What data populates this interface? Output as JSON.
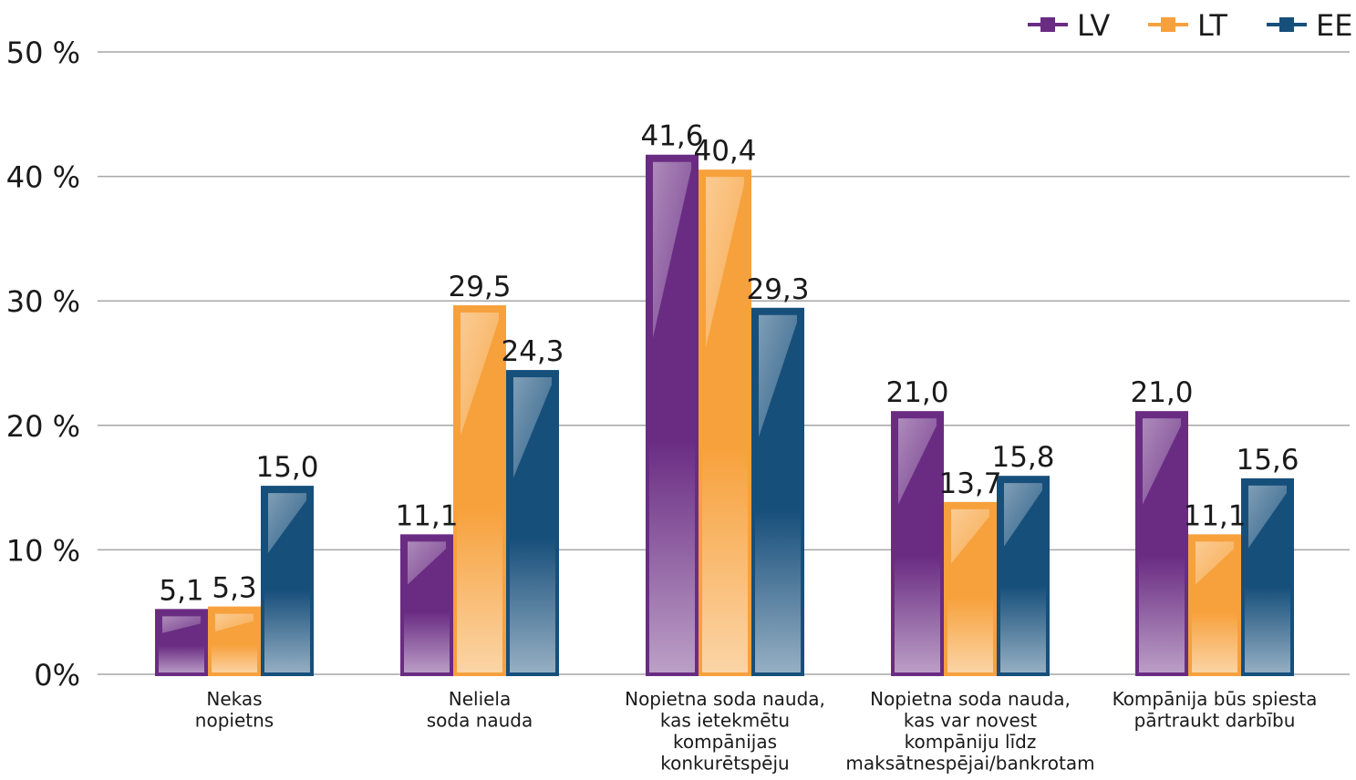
{
  "chart_data": {
    "type": "bar",
    "title": "",
    "xlabel": "",
    "ylabel": "",
    "ylim": [
      0,
      50
    ],
    "yticks": [
      0,
      10,
      20,
      30,
      40,
      50
    ],
    "ytick_labels": [
      "0%",
      "10 %",
      "20 %",
      "30 %",
      "40 %",
      "50 %"
    ],
    "grid": true,
    "legend_position": "top-right",
    "categories": [
      [
        "Nekas",
        "nopietns"
      ],
      [
        "Neliela",
        "soda nauda"
      ],
      [
        "Nopietna soda nauda,",
        "kas ietekmētu",
        "kompānijas",
        "konkurētspēju"
      ],
      [
        "Nopietna soda nauda,",
        "kas var novest",
        "kompāniju līdz",
        "maksātnespējai/bankrotam"
      ],
      [
        "Kompānija būs spiesta",
        "pārtraukt darbību"
      ]
    ],
    "series": [
      {
        "name": "LV",
        "color": "#6a2c83",
        "values": [
          5.1,
          11.1,
          41.6,
          21.0,
          21.0
        ],
        "labels": [
          "5,1",
          "11,1",
          "41,6",
          "21,0",
          "21,0"
        ]
      },
      {
        "name": "LT",
        "color": "#f7a13c",
        "values": [
          5.3,
          29.5,
          40.4,
          13.7,
          11.1
        ],
        "labels": [
          "5,3",
          "29,5",
          "40,4",
          "13,7",
          "11,1"
        ]
      },
      {
        "name": "EE",
        "color": "#174f7b",
        "values": [
          15.0,
          24.3,
          29.3,
          15.8,
          15.6
        ],
        "labels": [
          "15,0",
          "24,3",
          "29,3",
          "15,8",
          "15,6"
        ]
      }
    ]
  }
}
